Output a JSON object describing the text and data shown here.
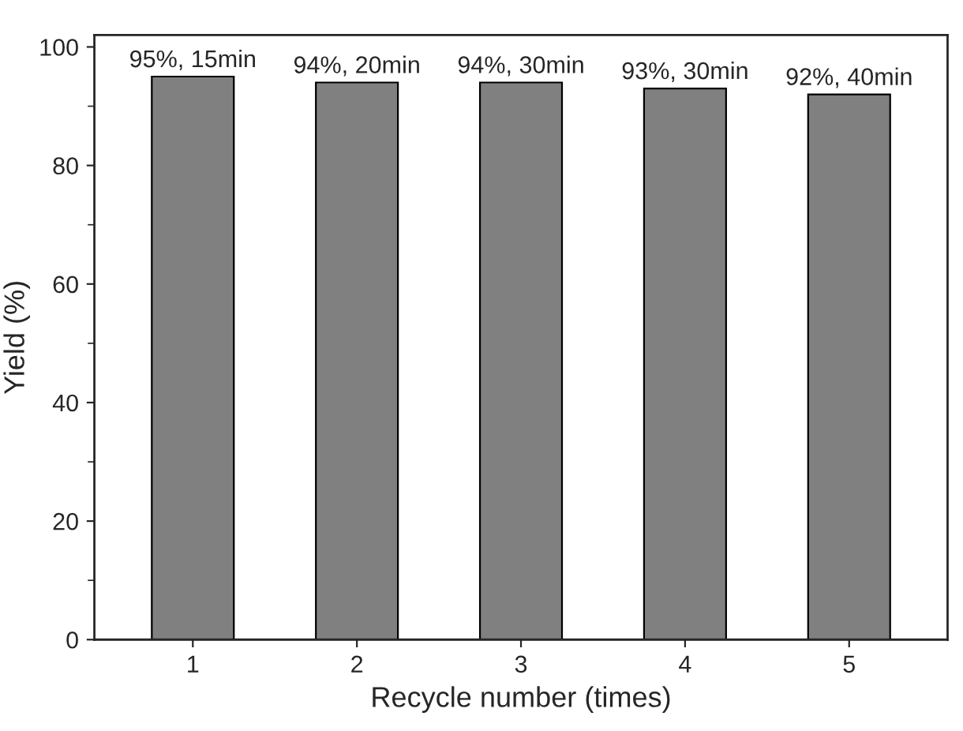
{
  "chart_data": {
    "type": "bar",
    "xlabel": "Recycle number (times)",
    "ylabel": "Yield (%)",
    "categories": [
      "1",
      "2",
      "3",
      "4",
      "5"
    ],
    "values": [
      95,
      94,
      94,
      93,
      92
    ],
    "value_labels": [
      "95%, 15min",
      "94%, 20min",
      "94%, 30min",
      "93%, 30min",
      "92%, 40min"
    ],
    "color": "#808080",
    "ylim": [
      0,
      102
    ],
    "yticks": [
      0,
      20,
      40,
      60,
      80,
      100
    ],
    "grid": false,
    "legend": false
  }
}
